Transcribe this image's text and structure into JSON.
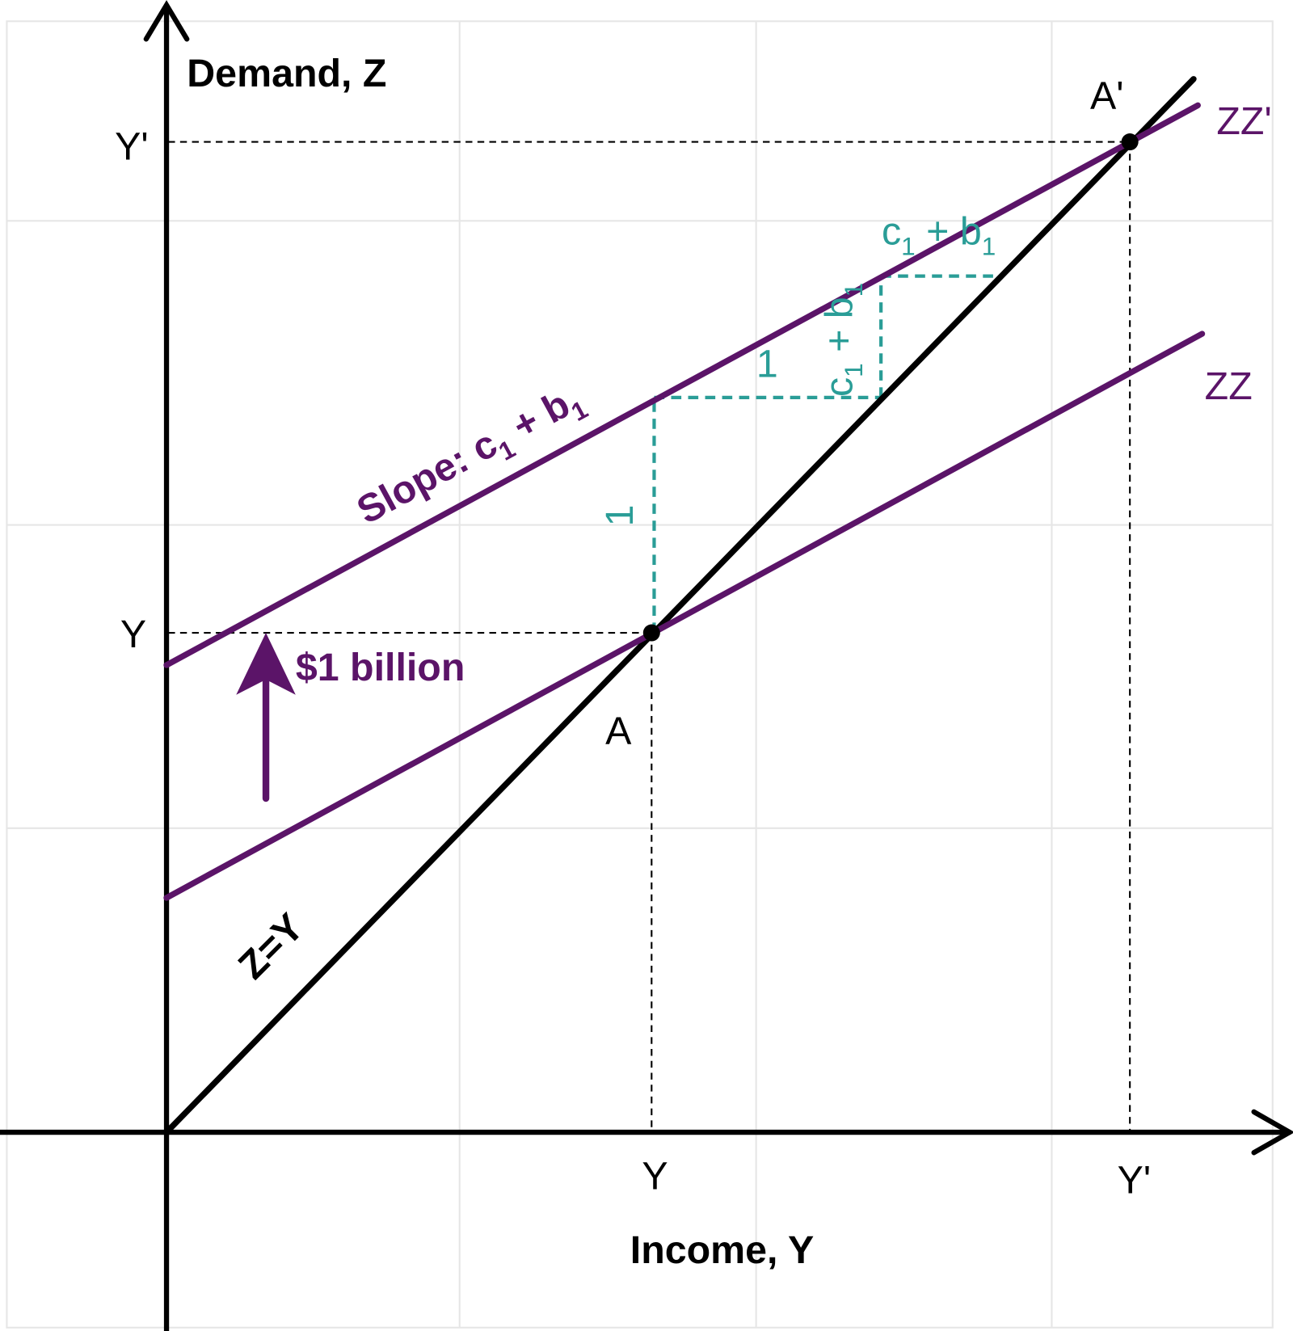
{
  "diagram": {
    "axes": {
      "y_label": "Demand, Z",
      "x_label": "Income, Y"
    },
    "ticks": {
      "y_top": "Y'",
      "y_mid": "Y",
      "x_mid": "Y",
      "x_right": "Y'"
    },
    "lines": {
      "zz_prime": "ZZ'",
      "zz": "ZZ",
      "z_eq_y": "Z=Y"
    },
    "points": {
      "a": "A",
      "a_prime": "A'"
    },
    "shift_label": "$1 billion",
    "slope_label": [
      "Slope: c",
      "1",
      " + b",
      "1"
    ],
    "triangle_small": {
      "run": "1",
      "rise": [
        "c",
        "1",
        " + b",
        "1"
      ],
      "rise_above": [
        "c",
        "1",
        " + b",
        "1"
      ]
    },
    "triangle_big": {
      "rise": "1"
    }
  }
}
